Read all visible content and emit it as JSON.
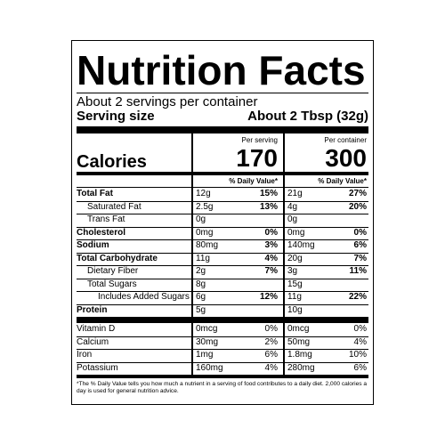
{
  "title": "Nutrition Facts",
  "servings": "About 2 servings per container",
  "serving_size": {
    "label": "Serving size",
    "value": "About 2 Tbsp (32g)"
  },
  "columns": [
    "Per serving",
    "Per container"
  ],
  "calories": {
    "label": "Calories",
    "per_serving": "170",
    "per_container": "300"
  },
  "daily_value_header": [
    "% Daily Value*",
    "% Daily Value*"
  ],
  "nutrients": [
    {
      "name": "Total Fat",
      "serving_amount": "12g",
      "serving_dv": "15%",
      "container_amount": "21g",
      "container_dv": "27%"
    },
    {
      "name": "Saturated Fat",
      "serving_amount": "2.5g",
      "serving_dv": "13%",
      "container_amount": "4g",
      "container_dv": "20%"
    },
    {
      "name": "Trans Fat",
      "serving_amount": "0g",
      "container_amount": "0g"
    },
    {
      "name": "Cholesterol",
      "serving_amount": "0mg",
      "serving_dv": "0%",
      "container_amount": "0mg",
      "container_dv": "0%"
    },
    {
      "name": "Sodium",
      "serving_amount": "80mg",
      "serving_dv": "3%",
      "container_amount": "140mg",
      "container_dv": "6%"
    },
    {
      "name": "Total Carbohydrate",
      "serving_amount": "11g",
      "serving_dv": "4%",
      "container_amount": "20g",
      "container_dv": "7%"
    },
    {
      "name": "Dietary Fiber",
      "serving_amount": "2g",
      "serving_dv": "7%",
      "container_amount": "3g",
      "container_dv": "11%"
    },
    {
      "name": "Total Sugars",
      "serving_amount": "8g",
      "container_amount": "15g"
    },
    {
      "name": "Includes Added Sugars",
      "serving_amount": "6g",
      "serving_dv": "12%",
      "container_amount": "11g",
      "container_dv": "22%"
    },
    {
      "name": "Protein",
      "serving_amount": "5g",
      "container_amount": "10g"
    }
  ],
  "vitamins": [
    {
      "name": "Vitamin D",
      "serving_amount": "0mcg",
      "serving_dv": "0%",
      "container_amount": "0mcg",
      "container_dv": "0%"
    },
    {
      "name": "Calcium",
      "serving_amount": "30mg",
      "serving_dv": "2%",
      "container_amount": "50mg",
      "container_dv": "4%"
    },
    {
      "name": "Iron",
      "serving_amount": "1mg",
      "serving_dv": "6%",
      "container_amount": "1.8mg",
      "container_dv": "10%"
    },
    {
      "name": "Potassium",
      "serving_amount": "160mg",
      "serving_dv": "4%",
      "container_amount": "280mg",
      "container_dv": "6%"
    }
  ],
  "footnote": "*The % Daily Value tells you how much a nutrient in a serving of food contributes to a daily diet. 2,000 calories a day is used for general nutrition advice."
}
